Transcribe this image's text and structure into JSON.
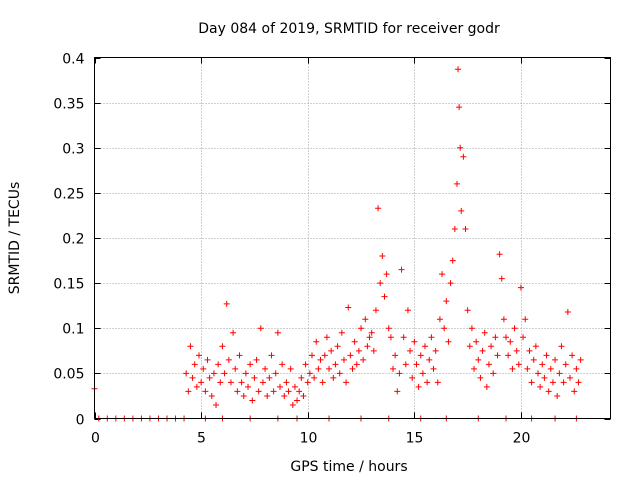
{
  "chart_data": {
    "type": "scatter",
    "title": "Day 084 of 2019, SRMTID for receiver godr",
    "xlabel": "GPS time / hours",
    "ylabel": "SRMTID / TECUs",
    "xlim": [
      0,
      24.2
    ],
    "ylim": [
      0,
      0.4
    ],
    "x_ticks": [
      0,
      5,
      10,
      15,
      20
    ],
    "y_ticks": [
      0,
      0.05,
      0.1,
      0.15,
      0.2,
      0.25,
      0.3,
      0.35,
      0.4
    ],
    "x_tick_labels": [
      "0",
      "5",
      "10",
      "15",
      "20"
    ],
    "y_tick_labels": [
      "0",
      "0.05",
      "0.1",
      "0.15",
      "0.2",
      "0.25",
      "0.3",
      "0.35",
      "0.4"
    ],
    "grid": true,
    "marker": "+",
    "series": [
      {
        "name": "SRMTID",
        "color": "#ff0000",
        "points": [
          [
            0.0,
            0.033
          ],
          [
            4.3,
            0.05
          ],
          [
            4.4,
            0.03
          ],
          [
            4.5,
            0.08
          ],
          [
            4.6,
            0.045
          ],
          [
            4.7,
            0.06
          ],
          [
            4.8,
            0.035
          ],
          [
            4.9,
            0.07
          ],
          [
            5.0,
            0.04
          ],
          [
            5.1,
            0.055
          ],
          [
            5.2,
            0.03
          ],
          [
            5.3,
            0.065
          ],
          [
            5.4,
            0.045
          ],
          [
            5.5,
            0.025
          ],
          [
            5.6,
            0.05
          ],
          [
            5.7,
            0.015
          ],
          [
            5.8,
            0.06
          ],
          [
            5.9,
            0.04
          ],
          [
            6.0,
            0.08
          ],
          [
            6.1,
            0.05
          ],
          [
            6.2,
            0.127
          ],
          [
            6.3,
            0.065
          ],
          [
            6.4,
            0.04
          ],
          [
            6.5,
            0.095
          ],
          [
            6.6,
            0.055
          ],
          [
            6.7,
            0.03
          ],
          [
            6.8,
            0.07
          ],
          [
            6.9,
            0.04
          ],
          [
            7.0,
            0.025
          ],
          [
            7.1,
            0.05
          ],
          [
            7.2,
            0.035
          ],
          [
            7.3,
            0.06
          ],
          [
            7.4,
            0.02
          ],
          [
            7.5,
            0.045
          ],
          [
            7.6,
            0.065
          ],
          [
            7.7,
            0.03
          ],
          [
            7.8,
            0.1
          ],
          [
            7.9,
            0.04
          ],
          [
            8.0,
            0.055
          ],
          [
            8.1,
            0.025
          ],
          [
            8.2,
            0.045
          ],
          [
            8.3,
            0.07
          ],
          [
            8.4,
            0.03
          ],
          [
            8.5,
            0.05
          ],
          [
            8.6,
            0.095
          ],
          [
            8.7,
            0.035
          ],
          [
            8.8,
            0.06
          ],
          [
            8.9,
            0.025
          ],
          [
            9.0,
            0.04
          ],
          [
            9.1,
            0.03
          ],
          [
            9.2,
            0.055
          ],
          [
            9.3,
            0.015
          ],
          [
            9.4,
            0.035
          ],
          [
            9.5,
            0.02
          ],
          [
            9.6,
            0.03
          ],
          [
            9.7,
            0.045
          ],
          [
            9.8,
            0.025
          ],
          [
            9.9,
            0.06
          ],
          [
            10.0,
            0.04
          ],
          [
            10.1,
            0.05
          ],
          [
            10.2,
            0.07
          ],
          [
            10.3,
            0.045
          ],
          [
            10.4,
            0.085
          ],
          [
            10.5,
            0.055
          ],
          [
            10.6,
            0.065
          ],
          [
            10.7,
            0.04
          ],
          [
            10.8,
            0.07
          ],
          [
            10.9,
            0.09
          ],
          [
            11.0,
            0.055
          ],
          [
            11.1,
            0.075
          ],
          [
            11.2,
            0.045
          ],
          [
            11.3,
            0.06
          ],
          [
            11.4,
            0.08
          ],
          [
            11.5,
            0.05
          ],
          [
            11.6,
            0.095
          ],
          [
            11.7,
            0.065
          ],
          [
            11.8,
            0.04
          ],
          [
            11.9,
            0.123
          ],
          [
            12.0,
            0.07
          ],
          [
            12.1,
            0.055
          ],
          [
            12.2,
            0.085
          ],
          [
            12.3,
            0.06
          ],
          [
            12.4,
            0.075
          ],
          [
            12.5,
            0.1
          ],
          [
            12.6,
            0.065
          ],
          [
            12.7,
            0.11
          ],
          [
            12.8,
            0.08
          ],
          [
            12.9,
            0.09
          ],
          [
            13.0,
            0.095
          ],
          [
            13.1,
            0.075
          ],
          [
            13.2,
            0.12
          ],
          [
            13.3,
            0.233
          ],
          [
            13.4,
            0.15
          ],
          [
            13.5,
            0.18
          ],
          [
            13.6,
            0.135
          ],
          [
            13.7,
            0.16
          ],
          [
            13.8,
            0.1
          ],
          [
            13.9,
            0.09
          ],
          [
            14.0,
            0.055
          ],
          [
            14.1,
            0.07
          ],
          [
            14.2,
            0.03
          ],
          [
            14.3,
            0.05
          ],
          [
            14.4,
            0.165
          ],
          [
            14.5,
            0.09
          ],
          [
            14.6,
            0.06
          ],
          [
            14.7,
            0.12
          ],
          [
            14.8,
            0.075
          ],
          [
            14.9,
            0.045
          ],
          [
            15.0,
            0.085
          ],
          [
            15.1,
            0.06
          ],
          [
            15.2,
            0.035
          ],
          [
            15.3,
            0.07
          ],
          [
            15.4,
            0.05
          ],
          [
            15.5,
            0.08
          ],
          [
            15.6,
            0.04
          ],
          [
            15.7,
            0.065
          ],
          [
            15.8,
            0.09
          ],
          [
            15.9,
            0.055
          ],
          [
            16.0,
            0.075
          ],
          [
            16.1,
            0.04
          ],
          [
            16.2,
            0.11
          ],
          [
            16.3,
            0.16
          ],
          [
            16.4,
            0.1
          ],
          [
            16.5,
            0.13
          ],
          [
            16.6,
            0.085
          ],
          [
            16.7,
            0.15
          ],
          [
            16.8,
            0.175
          ],
          [
            16.9,
            0.21
          ],
          [
            17.0,
            0.26
          ],
          [
            17.05,
            0.387
          ],
          [
            17.1,
            0.345
          ],
          [
            17.15,
            0.3
          ],
          [
            17.2,
            0.23
          ],
          [
            17.3,
            0.29
          ],
          [
            17.4,
            0.21
          ],
          [
            17.5,
            0.12
          ],
          [
            17.6,
            0.08
          ],
          [
            17.7,
            0.1
          ],
          [
            17.8,
            0.055
          ],
          [
            17.9,
            0.085
          ],
          [
            18.0,
            0.065
          ],
          [
            18.1,
            0.045
          ],
          [
            18.2,
            0.075
          ],
          [
            18.3,
            0.095
          ],
          [
            18.4,
            0.035
          ],
          [
            18.5,
            0.06
          ],
          [
            18.6,
            0.08
          ],
          [
            18.7,
            0.05
          ],
          [
            18.8,
            0.09
          ],
          [
            18.9,
            0.07
          ],
          [
            19.0,
            0.182
          ],
          [
            19.1,
            0.155
          ],
          [
            19.2,
            0.11
          ],
          [
            19.3,
            0.09
          ],
          [
            19.4,
            0.07
          ],
          [
            19.5,
            0.085
          ],
          [
            19.6,
            0.055
          ],
          [
            19.7,
            0.1
          ],
          [
            19.8,
            0.075
          ],
          [
            19.9,
            0.06
          ],
          [
            20.0,
            0.145
          ],
          [
            20.1,
            0.09
          ],
          [
            20.2,
            0.11
          ],
          [
            20.3,
            0.055
          ],
          [
            20.4,
            0.075
          ],
          [
            20.5,
            0.04
          ],
          [
            20.6,
            0.065
          ],
          [
            20.7,
            0.08
          ],
          [
            20.8,
            0.05
          ],
          [
            20.9,
            0.035
          ],
          [
            21.0,
            0.06
          ],
          [
            21.1,
            0.045
          ],
          [
            21.2,
            0.07
          ],
          [
            21.3,
            0.03
          ],
          [
            21.4,
            0.055
          ],
          [
            21.5,
            0.04
          ],
          [
            21.6,
            0.065
          ],
          [
            21.7,
            0.025
          ],
          [
            21.8,
            0.05
          ],
          [
            21.9,
            0.08
          ],
          [
            22.0,
            0.04
          ],
          [
            22.1,
            0.06
          ],
          [
            22.2,
            0.118
          ],
          [
            22.3,
            0.045
          ],
          [
            22.4,
            0.07
          ],
          [
            22.5,
            0.03
          ],
          [
            22.6,
            0.055
          ],
          [
            22.7,
            0.04
          ],
          [
            22.8,
            0.065
          ],
          [
            0.2,
            0.0
          ],
          [
            0.6,
            0.0
          ],
          [
            1.0,
            0.0
          ],
          [
            1.4,
            0.0
          ],
          [
            1.8,
            0.0
          ],
          [
            2.2,
            0.0
          ],
          [
            2.6,
            0.0
          ],
          [
            3.0,
            0.0
          ],
          [
            3.4,
            0.0
          ],
          [
            3.8,
            0.0
          ],
          [
            4.2,
            0.0
          ],
          [
            5.2,
            0.0
          ],
          [
            6.0,
            0.0
          ],
          [
            7.3,
            0.0
          ],
          [
            8.6,
            0.0
          ],
          [
            9.5,
            0.0
          ],
          [
            11.0,
            0.0
          ],
          [
            12.5,
            0.0
          ],
          [
            13.8,
            0.0
          ],
          [
            15.3,
            0.0
          ],
          [
            16.5,
            0.0
          ],
          [
            18.0,
            0.0
          ],
          [
            19.3,
            0.0
          ],
          [
            20.5,
            0.0
          ],
          [
            21.6,
            0.0
          ],
          [
            22.6,
            0.0
          ]
        ]
      }
    ]
  }
}
